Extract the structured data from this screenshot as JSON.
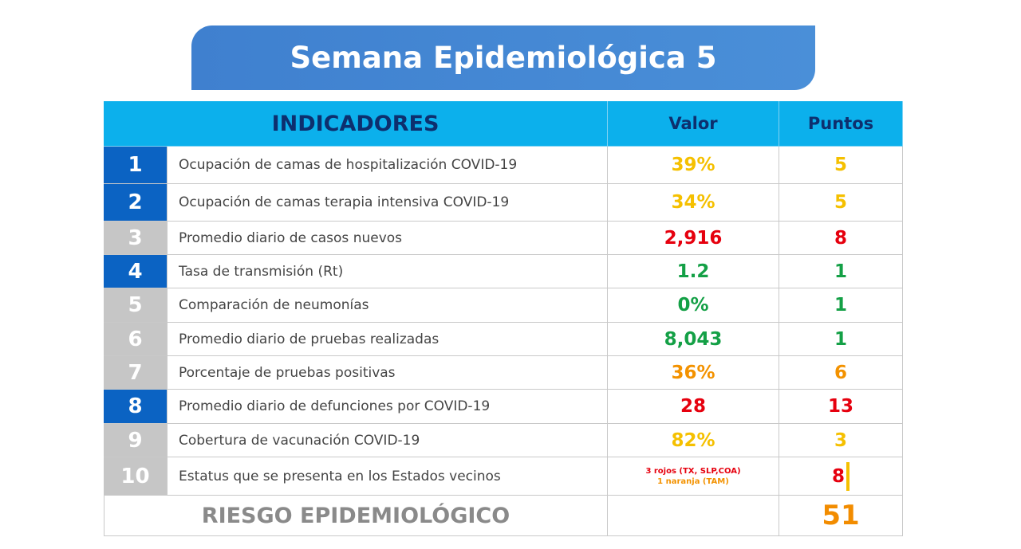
{
  "header": {
    "title": "Semana Epidemiológica 5"
  },
  "table": {
    "headers": [
      "INDICADORES",
      "Valor",
      "Puntos"
    ],
    "rows": [
      {
        "number": "1",
        "indicator": "Ocupación de camas de hospitalización COVID-19",
        "value": [
          "39%"
        ],
        "value_colors": [
          "yellow"
        ],
        "points": "5",
        "points_color": "yellow",
        "number_style": "blue"
      },
      {
        "number": "2",
        "indicator": "Ocupación de camas terapia intensiva COVID-19",
        "value": [
          "34%"
        ],
        "value_colors": [
          "yellow"
        ],
        "points": "5",
        "points_color": "yellow",
        "number_style": "blue"
      },
      {
        "number": "3",
        "indicator": "Promedio diario de casos nuevos",
        "value": [
          "2,916"
        ],
        "value_colors": [
          "red"
        ],
        "points": "8",
        "points_color": "red",
        "number_style": "gray"
      },
      {
        "number": "4",
        "indicator": "Tasa de transmisión (Rt)",
        "value": [
          "1.2"
        ],
        "value_colors": [
          "green"
        ],
        "points": "1",
        "points_color": "green",
        "number_style": "blue"
      },
      {
        "number": "5",
        "indicator": "Comparación de neumonías",
        "value": [
          "0%"
        ],
        "value_colors": [
          "green"
        ],
        "points": "1",
        "points_color": "green",
        "number_style": "gray"
      },
      {
        "number": "6",
        "indicator": "Promedio diario de pruebas realizadas",
        "value": [
          "8,043"
        ],
        "value_colors": [
          "green"
        ],
        "points": "1",
        "points_color": "green",
        "number_style": "gray"
      },
      {
        "number": "7",
        "indicator": "Porcentaje de pruebas positivas",
        "value": [
          "36%"
        ],
        "value_colors": [
          "orange"
        ],
        "points": "6",
        "points_color": "orange",
        "number_style": "gray"
      },
      {
        "number": "8",
        "indicator": "Promedio diario de defunciones por COVID-19",
        "value": [
          "28"
        ],
        "value_colors": [
          "red"
        ],
        "points": "13",
        "points_color": "red",
        "number_style": "blue"
      },
      {
        "number": "9",
        "indicator": "Cobertura de vacunación COVID-19",
        "value": [
          "82%"
        ],
        "value_colors": [
          "yellow"
        ],
        "points": "3",
        "points_color": "yellow",
        "number_style": "gray"
      },
      {
        "number": "10",
        "indicator": "Estatus que se presenta en los Estados vecinos",
        "value": [
          "3 rojos (TX, SLP,COA)",
          "1 naranja (TAM)"
        ],
        "value_colors": [
          "red",
          "orange"
        ],
        "points": "8",
        "points_color": "red",
        "number_style": "gray"
      }
    ],
    "total": {
      "label": "RIESGO EPIDEMIOLÓGICO",
      "points": "51"
    }
  }
}
